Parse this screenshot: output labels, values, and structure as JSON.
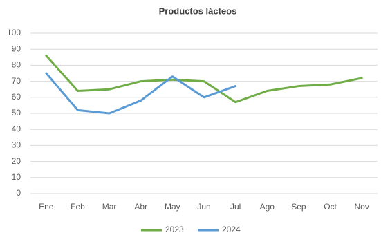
{
  "chart_data": {
    "type": "line",
    "title": "Productos lácteos",
    "categories": [
      "Ene",
      "Feb",
      "Mar",
      "Abr",
      "May",
      "Jun",
      "Jul",
      "Ago",
      "Sep",
      "Oct",
      "Nov"
    ],
    "series": [
      {
        "name": "2023",
        "color": "#70ad47",
        "values": [
          86,
          64,
          65,
          70,
          71,
          70,
          57,
          64,
          67,
          68,
          72
        ]
      },
      {
        "name": "2024",
        "color": "#5b9bd5",
        "values": [
          75,
          52,
          50,
          58,
          73,
          60,
          67,
          null,
          null,
          null,
          null
        ]
      }
    ],
    "ylim": [
      0,
      100
    ],
    "yticks": [
      0,
      10,
      20,
      30,
      40,
      50,
      60,
      70,
      80,
      90,
      100
    ],
    "grid": true,
    "legend": "bottom"
  }
}
